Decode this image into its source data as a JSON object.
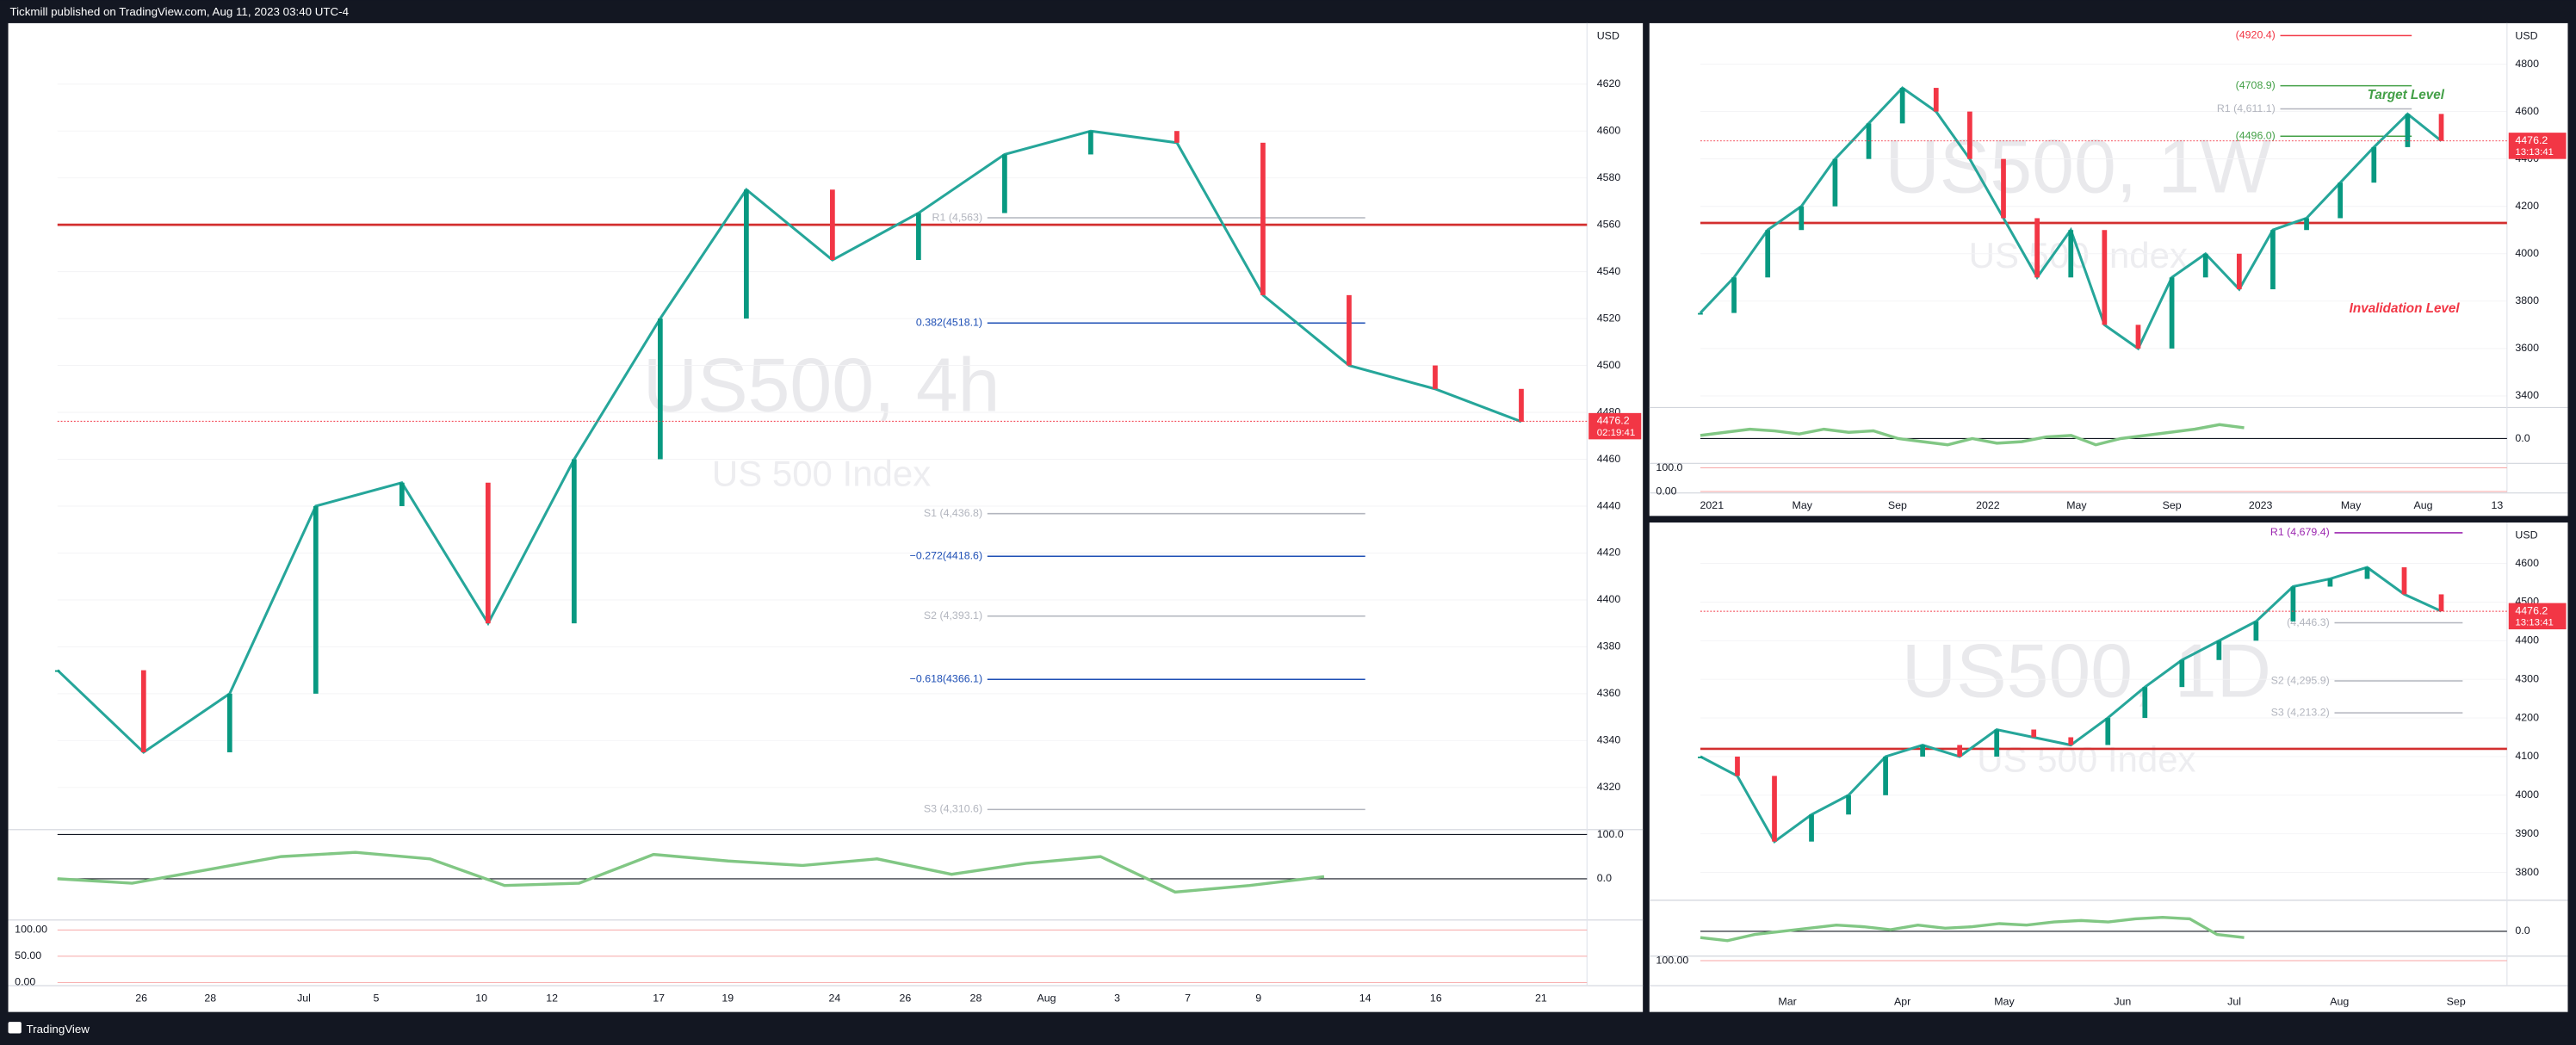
{
  "header": {
    "text": "Tickmill published on TradingView.com, Aug 11, 2023 03:40 UTC-4"
  },
  "footer": {
    "brand": "TradingView"
  },
  "panels": [
    {
      "type": "line",
      "watermark": "US500, 4h",
      "subtitle": "US 500 Index",
      "currency": "USD",
      "ylim": [
        4302,
        4646
      ],
      "yticks": [
        4320,
        4340,
        4360,
        4380,
        4400,
        4420,
        4440,
        4460,
        4480,
        4500,
        4520,
        4540,
        4560,
        4580,
        4600,
        4620
      ],
      "xticks": [
        "26",
        "28",
        "Jul",
        "5",
        "10",
        "12",
        "17",
        "19",
        "24",
        "26",
        "28",
        "Aug",
        "3",
        "7",
        "9",
        "14",
        "16",
        "21"
      ],
      "closes": [
        4370,
        4335,
        4360,
        4440,
        4450,
        4390,
        4460,
        4520,
        4575,
        4545,
        4565,
        4590,
        4600,
        4595,
        4530,
        4500,
        4490,
        4476
      ],
      "color": "#26a69a",
      "levels": [
        {
          "label": "R1 (4,563)",
          "value": 4563,
          "color": "#b2b5be"
        },
        {
          "label": "0.382(4518.1)",
          "value": 4518.1,
          "color": "#1e4fb5"
        },
        {
          "label": "S1 (4,436.8)",
          "value": 4436.8,
          "color": "#b2b5be"
        },
        {
          "label": "−0.272(4418.6)",
          "value": 4418.6,
          "color": "#1e4fb5"
        },
        {
          "label": "S2 (4,393.1)",
          "value": 4393.1,
          "color": "#b2b5be"
        },
        {
          "label": "−0.618(4366.1)",
          "value": 4366.1,
          "color": "#1e4fb5"
        },
        {
          "label": "S3 (4,310.6)",
          "value": 4310.6,
          "color": "#b2b5be"
        }
      ],
      "hlines": [
        4560
      ],
      "price": {
        "value": 4476.2,
        "label": "4476.2"
      },
      "timer": "02:19:41",
      "osc": {
        "ylim": [
          -93,
          111
        ],
        "yticks": [
          {
            "value": 100,
            "label": "100.0"
          },
          {
            "value": 0,
            "label": "0.0"
          }
        ],
        "values": [
          0,
          -10,
          20,
          50,
          60,
          45,
          -15,
          -10,
          55,
          40,
          30,
          45,
          10,
          35,
          50,
          -30,
          -15,
          5
        ]
      },
      "osc2": {
        "ylim": [
          -6,
          119
        ],
        "yticks": [
          {
            "value": 100,
            "label": "100.00"
          },
          {
            "value": 50,
            "label": "50.00"
          },
          {
            "value": 0,
            "label": "0.00"
          }
        ]
      }
    },
    {
      "type": "line",
      "watermark": "US500, 1W",
      "subtitle": "US 500 Index",
      "currency": "USD",
      "ylim": [
        3351,
        4973
      ],
      "yticks": [
        3400,
        3600,
        3800,
        4000,
        4200,
        4400,
        4600,
        4800
      ],
      "xticks": [
        "2021",
        "May",
        "Sep",
        "2022",
        "May",
        "Sep",
        "2023",
        "May",
        "Aug",
        "13"
      ],
      "closes": [
        3750,
        3900,
        4100,
        4200,
        4400,
        4550,
        4700,
        4600,
        4400,
        4150,
        3900,
        4100,
        3700,
        3600,
        3900,
        4000,
        3850,
        4100,
        4150,
        4300,
        4450,
        4590,
        4476.2
      ],
      "color": "#26a69a",
      "levels": [
        {
          "label": "(4920.4)",
          "value": 4920.4,
          "color": "#f23645"
        },
        {
          "label": "(4708.9)",
          "value": 4708.9,
          "color": "#43a047"
        },
        {
          "label": "R1 (4,611.1)",
          "value": 4611.1,
          "color": "#b2b5be"
        },
        {
          "label": "(4496.0)",
          "value": 4496.0,
          "color": "#43a047"
        }
      ],
      "hlines": [
        4130
      ],
      "notes": [
        "Target Level",
        "Invalidation Level"
      ],
      "price": {
        "value": 4476.2,
        "label": "4476.2"
      },
      "timer": "13:13:41",
      "osc": {
        "ylim": [
          -80,
          100
        ],
        "yticks": [
          {
            "value": 0,
            "label": "0.0"
          }
        ],
        "values": [
          10,
          20,
          30,
          25,
          15,
          30,
          20,
          25,
          0,
          -10,
          -20,
          0,
          -15,
          -10,
          5,
          10,
          -20,
          0,
          10,
          20,
          30,
          45,
          35
        ]
      },
      "osc2": {
        "ylim": [
          -6,
          119
        ],
        "yticks": [
          {
            "value": 100,
            "label": "100.0"
          },
          {
            "value": 0,
            "label": "0.00"
          }
        ]
      }
    },
    {
      "type": "line",
      "watermark": "US500, 1D",
      "subtitle": "US 500 Index",
      "currency": "USD",
      "ylim": [
        3728,
        4706
      ],
      "yticks": [
        3800,
        3900,
        4000,
        4100,
        4200,
        4300,
        4400,
        4500,
        4600
      ],
      "xticks": [
        "Mar",
        "Apr",
        "May",
        "Jun",
        "Jul",
        "Aug",
        "Sep"
      ],
      "closes": [
        4100,
        4050,
        3880,
        3950,
        4000,
        4100,
        4130,
        4100,
        4170,
        4150,
        4130,
        4200,
        4280,
        4350,
        4400,
        4450,
        4540,
        4560,
        4590,
        4520,
        4476.2
      ],
      "color": "#26a69a",
      "levels": [
        {
          "label": "R1 (4,679.4)",
          "value": 4679.4,
          "color": "#9c27b0"
        },
        {
          "label": "(4,446.3)",
          "value": 4446.3,
          "color": "#b2b5be"
        },
        {
          "label": "S2 (4,295.9)",
          "value": 4295.9,
          "color": "#b2b5be"
        },
        {
          "label": "S3 (4,213.2)",
          "value": 4213.2,
          "color": "#b2b5be"
        }
      ],
      "hlines": [
        4120
      ],
      "price": {
        "value": 4476.2,
        "label": "4476.2"
      },
      "timer": "13:13:41",
      "osc": {
        "ylim": [
          -80,
          100
        ],
        "yticks": [
          {
            "value": 0,
            "label": "0.0"
          }
        ],
        "values": [
          -20,
          -30,
          -10,
          0,
          10,
          20,
          15,
          5,
          20,
          10,
          15,
          25,
          20,
          30,
          35,
          30,
          40,
          45,
          40,
          -10,
          -20
        ]
      },
      "osc2": {
        "ylim": [
          -6,
          119
        ],
        "yticks": [
          {
            "value": 100,
            "label": "100.00"
          }
        ]
      }
    }
  ]
}
